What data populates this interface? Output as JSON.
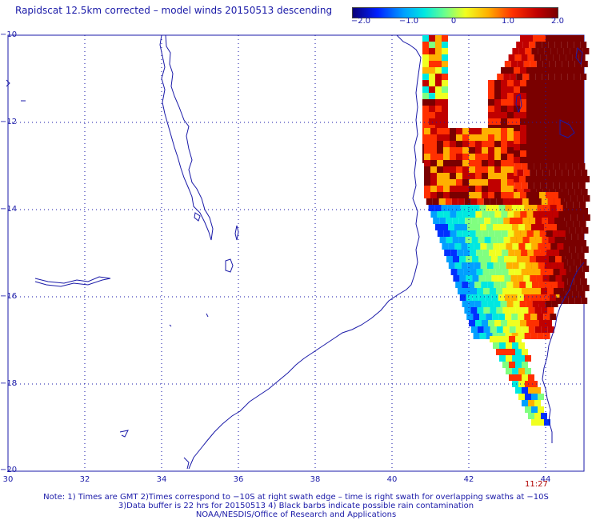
{
  "title": "Rapidscat 12.5km corrected – model winds 20150513 descending",
  "colorbar": {
    "ticks": [
      "−2.0",
      "−1.0",
      "0",
      "1.0",
      "2.0"
    ],
    "range": [
      -2.0,
      2.0
    ]
  },
  "lat_labels": [
    "−10",
    "−12",
    "−14",
    "−16",
    "−18",
    "−20"
  ],
  "lon_labels": [
    "30",
    "32",
    "34",
    "36",
    "38",
    "40",
    "42",
    "44"
  ],
  "swath_time": "11:27",
  "notes": [
    "Note: 1) Times are GMT 2)Times correspond to −10S at right swath edge – time is right swath for overlapping swaths at −10S",
    "3)Data buffer is 22 hrs for 20150513 4) Black barbs indicate possible rain contamination",
    "NOAA/NESDIS/Office of Research and Applications"
  ],
  "colors": {
    "text": "#1a1aa8",
    "coast": "#1a1aa8",
    "grid": "#1a1aa8",
    "time": "#b00000"
  },
  "map_extent": {
    "lon": [
      30,
      45
    ],
    "lat": [
      -20,
      -10
    ]
  }
}
